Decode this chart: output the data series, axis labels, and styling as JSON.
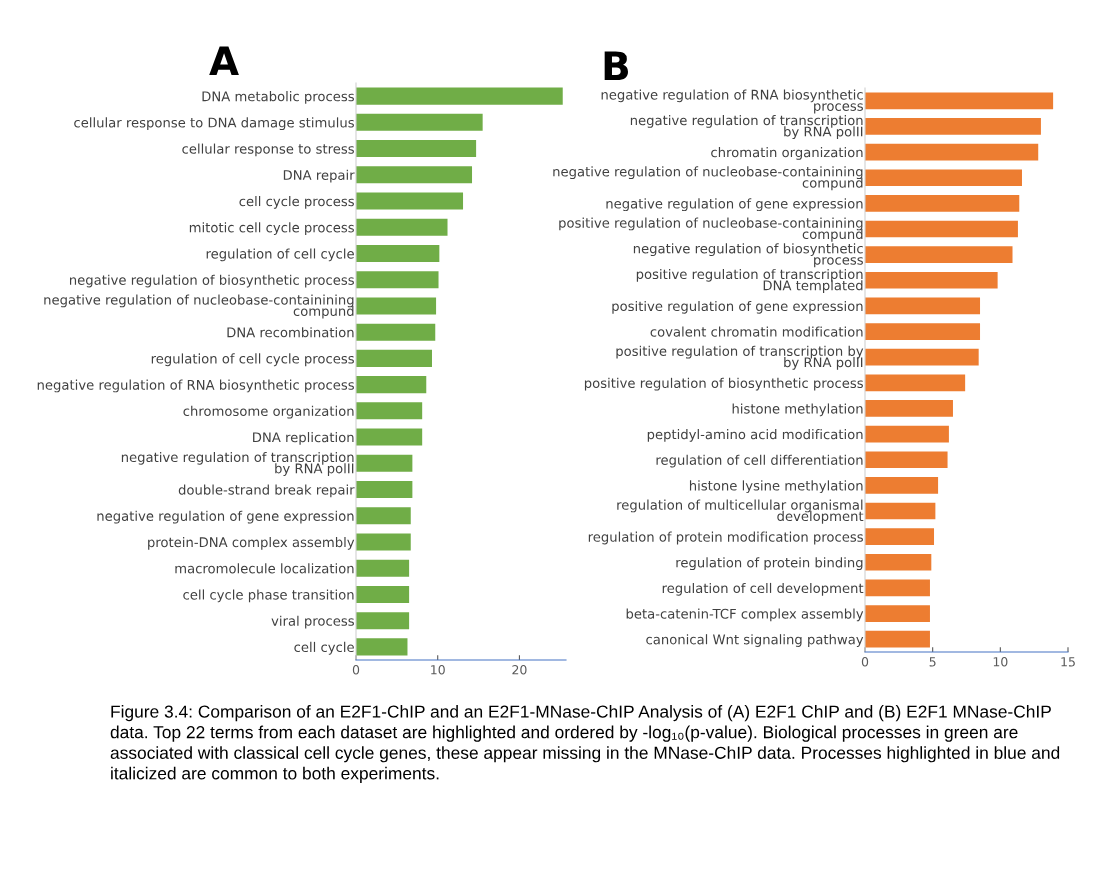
{
  "chart_data": [
    {
      "type": "bar",
      "orientation": "horizontal",
      "title": "A",
      "categories": [
        "DNA metabolic process",
        "cellular response to DNA damage stimulus",
        "cellular response to stress",
        "DNA repair",
        "cell cycle process",
        "mitotic cell cycle process",
        "regulation of cell cycle",
        "negative regulation of biosynthetic process",
        "negative regulation of nucleobase-containining\ncompund",
        "DNA recombination",
        "regulation of cell cycle process",
        "negative regulation of RNA biosynthetic process",
        "chromosome organization",
        "DNA replication",
        "negative regulation of transcription\nby RNA polII",
        "double-strand break repair",
        "negative regulation of gene expression",
        "protein-DNA complex assembly",
        "macromolecule localization",
        "cell cycle phase transition",
        "viral process",
        "cell cycle"
      ],
      "values": [
        25.3,
        15.5,
        14.7,
        14.2,
        13.1,
        11.2,
        10.2,
        10.1,
        9.8,
        9.7,
        9.3,
        8.6,
        8.1,
        8.1,
        6.9,
        6.9,
        6.7,
        6.7,
        6.5,
        6.5,
        6.5,
        6.3
      ],
      "color": "#70ad47",
      "xlim": [
        0,
        25.7
      ],
      "xticks": [
        0,
        10,
        20
      ],
      "grid": false,
      "legend": false
    },
    {
      "type": "bar",
      "orientation": "horizontal",
      "title": "B",
      "categories": [
        "negative regulation of RNA biosynthetic\nprocess",
        "negative regulation of transcription\nby RNA polII",
        "chromatin organization",
        "negative regulation of nucleobase-containining\ncompund",
        "negative regulation of gene expression",
        "positive regulation of nucleobase-containining\ncompund",
        "negative regulation of biosynthetic\nprocess",
        "positive regulation of transcription\nDNA templated",
        "positive regulation of gene expression",
        "covalent chromatin modification",
        "positive regulation of transcription by\nby RNA polII",
        "positive regulation of biosynthetic process",
        "histone methylation",
        "peptidyl-amino acid modification",
        "regulation of cell differentiation",
        "histone lysine methylation",
        "regulation of multicellular organismal\ndevelopment",
        "regulation of protein modification process",
        "regulation of protein binding",
        "regulation of cell development",
        "beta-catenin-TCF complex assembly",
        "canonical Wnt signaling pathway"
      ],
      "values": [
        13.9,
        13.0,
        12.8,
        11.6,
        11.4,
        11.3,
        10.9,
        9.8,
        8.5,
        8.5,
        8.4,
        7.4,
        6.5,
        6.2,
        6.1,
        5.4,
        5.2,
        5.1,
        4.9,
        4.8,
        4.8,
        4.8
      ],
      "color": "#ed7d31",
      "xlim": [
        0,
        15
      ],
      "xticks": [
        0,
        5,
        10,
        15
      ],
      "grid": false,
      "legend": false,
      "annotations": [
        "Figure 3.4: Comparison of an E2F1-ChIP and an E2F1-MNase-ChIP Analysis of (A) E2F1 ChIP and (B) E2F1 MNase-ChIP data. Top 22 terms from each dataset are highlighted and ordered by -log₁₀(p-value). Biological processes in green are associated with classical cell cycle genes, these appear missing in the MNase-ChIP data. Processes highlighted in blue and italicized are common to both experiments."
      ]
    }
  ]
}
